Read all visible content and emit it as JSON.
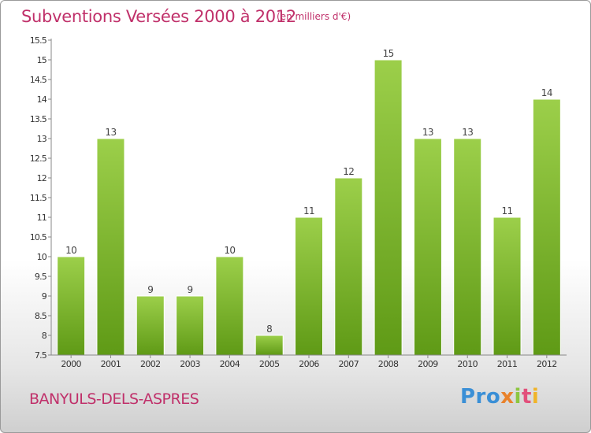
{
  "header": {
    "title": "Subventions Versées 2000 à 2012",
    "subtitle": "(en milliers d'€)"
  },
  "footer": {
    "commune": "BANYULS-DELS-ASPRES",
    "logo": [
      "Pro",
      "x",
      "i",
      "t",
      "i"
    ]
  },
  "colors": {
    "title": "#c0306a",
    "bar_top": "#9ccf4a",
    "bar_bottom": "#5f9a16"
  },
  "chart_data": {
    "type": "bar",
    "categories": [
      "2000",
      "2001",
      "2002",
      "2003",
      "2004",
      "2005",
      "2006",
      "2007",
      "2008",
      "2009",
      "2010",
      "2011",
      "2012"
    ],
    "values": [
      10,
      13,
      9,
      9,
      10,
      8,
      11,
      12,
      15,
      13,
      13,
      11,
      14
    ],
    "data_labels": [
      "10",
      "13",
      "9",
      "9",
      "10",
      "8",
      "11",
      "12",
      "15",
      "13",
      "13",
      "11",
      "14"
    ],
    "title": "Subventions Versées 2000 à 2012",
    "xlabel": "",
    "ylabel": "",
    "ylim": [
      7.5,
      15.5
    ],
    "yticks": [
      7.5,
      8,
      8.5,
      9,
      9.5,
      10,
      10.5,
      11,
      11.5,
      12,
      12.5,
      13,
      13.5,
      14,
      14.5,
      15,
      15.5
    ],
    "ytick_labels": [
      "7.5",
      "8",
      "8.5",
      "9",
      "9.5",
      "10",
      "10.5",
      "11",
      "11.5",
      "12",
      "12.5",
      "13",
      "13.5",
      "14",
      "14.5",
      "15",
      "15.5"
    ],
    "grid": false,
    "legend": "none"
  }
}
